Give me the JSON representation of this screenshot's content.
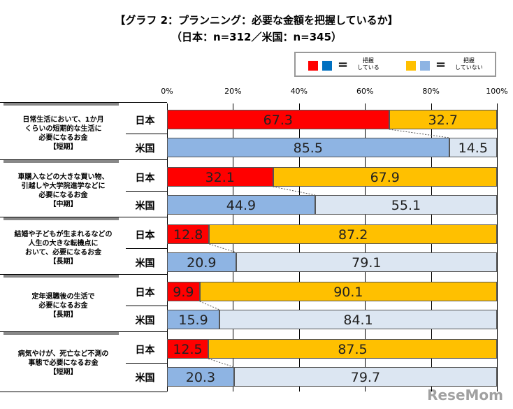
{
  "chart_data": {
    "type": "bar",
    "stacked": true,
    "orientation": "horizontal",
    "title": "【グラフ 2：プランニング：必要な金額を把握しているか】",
    "subtitle": "（日本：n=312／米国：n=345）",
    "legend": {
      "placement": "top-right",
      "items": [
        {
          "label": "把握\nしている",
          "colors": [
            "#ff0000",
            "#0070c0"
          ]
        },
        {
          "label": "把握\nしていない",
          "colors": [
            "#ffc000",
            "#8eb4e3"
          ]
        }
      ],
      "equals": "="
    },
    "xticks": [
      "0%",
      "20%",
      "40%",
      "60%",
      "80%",
      "100%"
    ],
    "xlim": [
      0,
      100
    ],
    "colors": {
      "japan_known": "#ff0000",
      "japan_unknown": "#ffc000",
      "us_known": "#8eb4e3",
      "us_unknown": "#dce6f2"
    },
    "groups": [
      {
        "label": [
          "日常生活において、1か月",
          "くらいの短期的な生活に",
          "必要になるお金",
          "【短期】"
        ],
        "rows": [
          {
            "country": "日本",
            "values": [
              67.3,
              32.7
            ]
          },
          {
            "country": "米国",
            "values": [
              85.5,
              14.5
            ]
          }
        ]
      },
      {
        "label": [
          "車購入などの大きな買い物、",
          "引越しや大学院進学などに",
          "必要になるお金",
          "【中期】"
        ],
        "rows": [
          {
            "country": "日本",
            "values": [
              32.1,
              67.9
            ]
          },
          {
            "country": "米国",
            "values": [
              44.9,
              55.1
            ]
          }
        ]
      },
      {
        "label": [
          "結婚や子どもが生まれるなどの",
          "人生の大きな転機点に",
          "おいて、必要になるお金",
          "【長期】"
        ],
        "rows": [
          {
            "country": "日本",
            "values": [
              12.8,
              87.2
            ]
          },
          {
            "country": "米国",
            "values": [
              20.9,
              79.1
            ]
          }
        ]
      },
      {
        "label": [
          "定年退職後の生活で",
          "必要になるお金",
          "【長期】"
        ],
        "rows": [
          {
            "country": "日本",
            "values": [
              9.9,
              90.1
            ]
          },
          {
            "country": "米国",
            "values": [
              15.9,
              84.1
            ]
          }
        ]
      },
      {
        "label": [
          "病気やけが、死亡など不測の",
          "事態で必要になるお金",
          "【短期】"
        ],
        "rows": [
          {
            "country": "日本",
            "values": [
              12.5,
              87.5
            ]
          },
          {
            "country": "米国",
            "values": [
              20.3,
              79.7
            ]
          }
        ]
      }
    ]
  },
  "watermark": "ReseMom"
}
